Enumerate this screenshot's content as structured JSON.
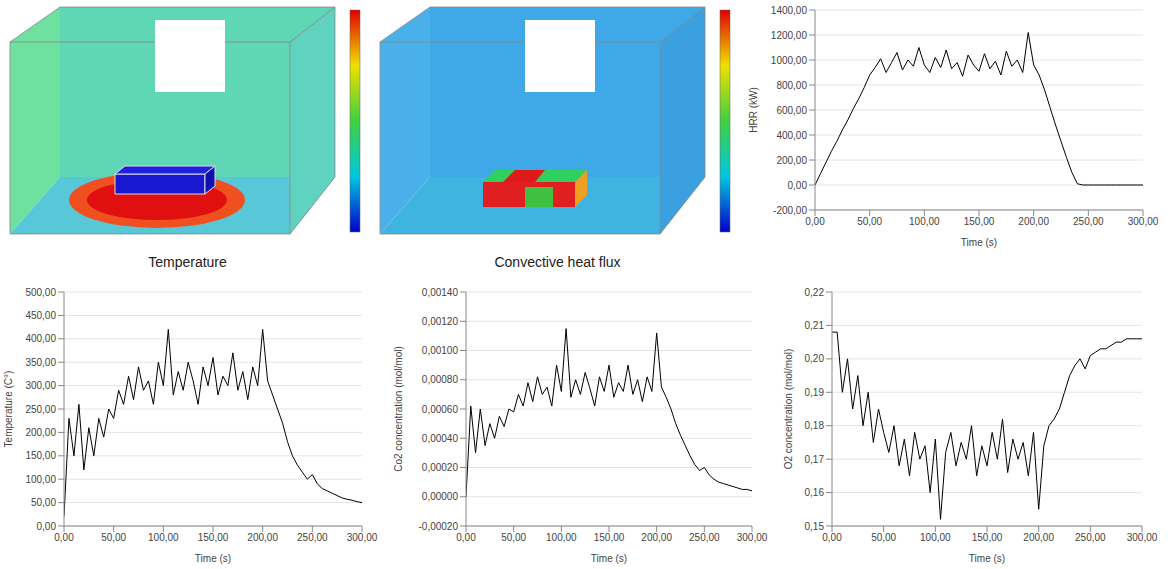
{
  "renders": [
    {
      "title": "Temperature"
    },
    {
      "title": "Convective heat flux"
    }
  ],
  "chart_data": [
    {
      "type": "line",
      "xlabel": "Time (s)",
      "ylabel": "HRR (kW)",
      "color": "#000000",
      "grid": true,
      "x": [
        0,
        5,
        10,
        15,
        20,
        25,
        30,
        35,
        40,
        45,
        50,
        55,
        60,
        65,
        70,
        75,
        80,
        85,
        90,
        95,
        100,
        105,
        110,
        115,
        120,
        125,
        130,
        135,
        140,
        145,
        150,
        155,
        160,
        165,
        170,
        175,
        180,
        185,
        190,
        195,
        200,
        205,
        210,
        215,
        220,
        225,
        230,
        235,
        240,
        245,
        250,
        255,
        260,
        265,
        270,
        275,
        280,
        285,
        290,
        295,
        300
      ],
      "values": [
        0,
        90,
        180,
        270,
        350,
        440,
        520,
        610,
        690,
        780,
        880,
        940,
        1010,
        900,
        980,
        1060,
        920,
        1000,
        950,
        1100,
        960,
        900,
        1020,
        940,
        1080,
        930,
        980,
        870,
        1040,
        960,
        910,
        1050,
        930,
        990,
        880,
        1070,
        950,
        1000,
        900,
        1220,
        960,
        880,
        760,
        620,
        480,
        350,
        220,
        100,
        10,
        0,
        0,
        0,
        0,
        0,
        0,
        0,
        0,
        0,
        0,
        0,
        0
      ],
      "xlim": [
        0,
        300
      ],
      "xticks": [
        {
          "value": 0,
          "label": "0,00"
        },
        {
          "value": 50,
          "label": "50,00"
        },
        {
          "value": 100,
          "label": "100,00"
        },
        {
          "value": 150,
          "label": "150,00"
        },
        {
          "value": 200,
          "label": "200,00"
        },
        {
          "value": 250,
          "label": "250,00"
        },
        {
          "value": 300,
          "label": "300,00"
        }
      ],
      "ylim": [
        -200,
        1400
      ],
      "yticks": [
        {
          "value": -200,
          "label": "-200,00"
        },
        {
          "value": 0,
          "label": "0,00"
        },
        {
          "value": 200,
          "label": "200,00"
        },
        {
          "value": 400,
          "label": "400,00"
        },
        {
          "value": 600,
          "label": "600,00"
        },
        {
          "value": 800,
          "label": "800,00"
        },
        {
          "value": 1000,
          "label": "1000,00"
        },
        {
          "value": 1200,
          "label": "1200,00"
        },
        {
          "value": 1400,
          "label": "1400,00"
        }
      ]
    },
    {
      "type": "line",
      "xlabel": "Time (s)",
      "ylabel": "Temperature (C°)",
      "color": "#000000",
      "grid": true,
      "x": [
        0,
        5,
        10,
        15,
        20,
        25,
        30,
        35,
        40,
        45,
        50,
        55,
        60,
        65,
        70,
        75,
        80,
        85,
        90,
        95,
        100,
        105,
        110,
        115,
        120,
        125,
        130,
        135,
        140,
        145,
        150,
        155,
        160,
        165,
        170,
        175,
        180,
        185,
        190,
        195,
        200,
        205,
        210,
        215,
        220,
        225,
        230,
        235,
        240,
        245,
        250,
        255,
        260,
        265,
        270,
        275,
        280,
        285,
        290,
        295,
        300
      ],
      "values": [
        20,
        230,
        150,
        260,
        120,
        210,
        150,
        230,
        190,
        250,
        230,
        290,
        260,
        320,
        270,
        340,
        290,
        310,
        260,
        350,
        300,
        420,
        280,
        330,
        290,
        350,
        310,
        260,
        340,
        300,
        360,
        280,
        320,
        300,
        370,
        290,
        330,
        270,
        340,
        300,
        420,
        310,
        280,
        250,
        220,
        180,
        150,
        130,
        115,
        100,
        110,
        90,
        80,
        75,
        70,
        65,
        60,
        57,
        55,
        52,
        50
      ],
      "xlim": [
        0,
        300
      ],
      "xticks": [
        {
          "value": 0,
          "label": "0,00"
        },
        {
          "value": 50,
          "label": "50,00"
        },
        {
          "value": 100,
          "label": "100,00"
        },
        {
          "value": 150,
          "label": "150,00"
        },
        {
          "value": 200,
          "label": "200,00"
        },
        {
          "value": 250,
          "label": "250,00"
        },
        {
          "value": 300,
          "label": "300,00"
        }
      ],
      "ylim": [
        0,
        500
      ],
      "yticks": [
        {
          "value": 0,
          "label": "0,00"
        },
        {
          "value": 50,
          "label": "50,00"
        },
        {
          "value": 100,
          "label": "100,00"
        },
        {
          "value": 150,
          "label": "150,00"
        },
        {
          "value": 200,
          "label": "200,00"
        },
        {
          "value": 250,
          "label": "250,00"
        },
        {
          "value": 300,
          "label": "300,00"
        },
        {
          "value": 350,
          "label": "350,00"
        },
        {
          "value": 400,
          "label": "400,00"
        },
        {
          "value": 450,
          "label": "450,00"
        },
        {
          "value": 500,
          "label": "500,00"
        }
      ]
    },
    {
      "type": "line",
      "xlabel": "Time (s)",
      "ylabel": "Co2 concentration (mol/mol)",
      "color": "#000000",
      "grid": true,
      "x": [
        0,
        5,
        10,
        15,
        20,
        25,
        30,
        35,
        40,
        45,
        50,
        55,
        60,
        65,
        70,
        75,
        80,
        85,
        90,
        95,
        100,
        105,
        110,
        115,
        120,
        125,
        130,
        135,
        140,
        145,
        150,
        155,
        160,
        165,
        170,
        175,
        180,
        185,
        190,
        195,
        200,
        205,
        210,
        215,
        220,
        225,
        230,
        235,
        240,
        245,
        250,
        255,
        260,
        265,
        270,
        275,
        280,
        285,
        290,
        295,
        300
      ],
      "values": [
        0,
        0.00062,
        0.0003,
        0.0006,
        0.00035,
        0.0005,
        0.0004,
        0.00055,
        0.00048,
        0.0006,
        0.00058,
        0.0007,
        0.00062,
        0.00078,
        0.00065,
        0.00082,
        0.0007,
        0.00075,
        0.00062,
        0.0009,
        0.00072,
        0.00115,
        0.00068,
        0.0008,
        0.0007,
        0.00085,
        0.00074,
        0.00062,
        0.00082,
        0.00072,
        0.0009,
        0.00068,
        0.00078,
        0.00072,
        0.0009,
        0.0007,
        0.0008,
        0.00065,
        0.00082,
        0.00072,
        0.00112,
        0.00075,
        0.00068,
        0.0006,
        0.0005,
        0.00042,
        0.00035,
        0.00028,
        0.00022,
        0.00018,
        0.0002,
        0.00015,
        0.00012,
        0.0001,
        9e-05,
        8e-05,
        7e-05,
        6e-05,
        5e-05,
        5e-05,
        4e-05
      ],
      "xlim": [
        0,
        300
      ],
      "xticks": [
        {
          "value": 0,
          "label": "0,00"
        },
        {
          "value": 50,
          "label": "50,00"
        },
        {
          "value": 100,
          "label": "100,00"
        },
        {
          "value": 150,
          "label": "150,00"
        },
        {
          "value": 200,
          "label": "200,00"
        },
        {
          "value": 250,
          "label": "250,00"
        },
        {
          "value": 300,
          "label": "300,00"
        }
      ],
      "ylim": [
        -0.0002,
        0.0014
      ],
      "yticks": [
        {
          "value": -0.0002,
          "label": "-0,00020"
        },
        {
          "value": 0,
          "label": "0,00000"
        },
        {
          "value": 0.0002,
          "label": "0,00020"
        },
        {
          "value": 0.0004,
          "label": "0,00040"
        },
        {
          "value": 0.0006,
          "label": "0,00060"
        },
        {
          "value": 0.0008,
          "label": "0,00080"
        },
        {
          "value": 0.001,
          "label": "0,00100"
        },
        {
          "value": 0.0012,
          "label": "0,00120"
        },
        {
          "value": 0.0014,
          "label": "0,00140"
        }
      ]
    },
    {
      "type": "line",
      "xlabel": "Time (s)",
      "ylabel": "O2 concentration (mol/mol)",
      "color": "#000000",
      "grid": true,
      "x": [
        0,
        5,
        10,
        15,
        20,
        25,
        30,
        35,
        40,
        45,
        50,
        55,
        60,
        65,
        70,
        75,
        80,
        85,
        90,
        95,
        100,
        105,
        110,
        115,
        120,
        125,
        130,
        135,
        140,
        145,
        150,
        155,
        160,
        165,
        170,
        175,
        180,
        185,
        190,
        195,
        200,
        205,
        210,
        215,
        220,
        225,
        230,
        235,
        240,
        245,
        250,
        255,
        260,
        265,
        270,
        275,
        280,
        285,
        290,
        295,
        300
      ],
      "values": [
        0.208,
        0.208,
        0.19,
        0.2,
        0.185,
        0.195,
        0.18,
        0.19,
        0.175,
        0.185,
        0.178,
        0.172,
        0.18,
        0.168,
        0.176,
        0.165,
        0.178,
        0.17,
        0.174,
        0.16,
        0.176,
        0.152,
        0.172,
        0.178,
        0.168,
        0.175,
        0.17,
        0.18,
        0.165,
        0.174,
        0.168,
        0.178,
        0.17,
        0.182,
        0.166,
        0.176,
        0.17,
        0.175,
        0.165,
        0.178,
        0.155,
        0.174,
        0.18,
        0.182,
        0.185,
        0.19,
        0.195,
        0.198,
        0.2,
        0.197,
        0.201,
        0.202,
        0.203,
        0.203,
        0.204,
        0.205,
        0.205,
        0.206,
        0.206,
        0.206,
        0.206
      ],
      "xlim": [
        0,
        300
      ],
      "xticks": [
        {
          "value": 0,
          "label": "0,00"
        },
        {
          "value": 50,
          "label": "50,00"
        },
        {
          "value": 100,
          "label": "100,00"
        },
        {
          "value": 150,
          "label": "150,00"
        },
        {
          "value": 200,
          "label": "200,00"
        },
        {
          "value": 250,
          "label": "250,00"
        },
        {
          "value": 300,
          "label": "300,00"
        }
      ],
      "ylim": [
        0.15,
        0.22
      ],
      "yticks": [
        {
          "value": 0.15,
          "label": "0,15"
        },
        {
          "value": 0.16,
          "label": "0,16"
        },
        {
          "value": 0.17,
          "label": "0,17"
        },
        {
          "value": 0.18,
          "label": "0,18"
        },
        {
          "value": 0.19,
          "label": "0,19"
        },
        {
          "value": 0.2,
          "label": "0,20"
        },
        {
          "value": 0.21,
          "label": "0,21"
        },
        {
          "value": 0.22,
          "label": "0,22"
        }
      ]
    }
  ]
}
